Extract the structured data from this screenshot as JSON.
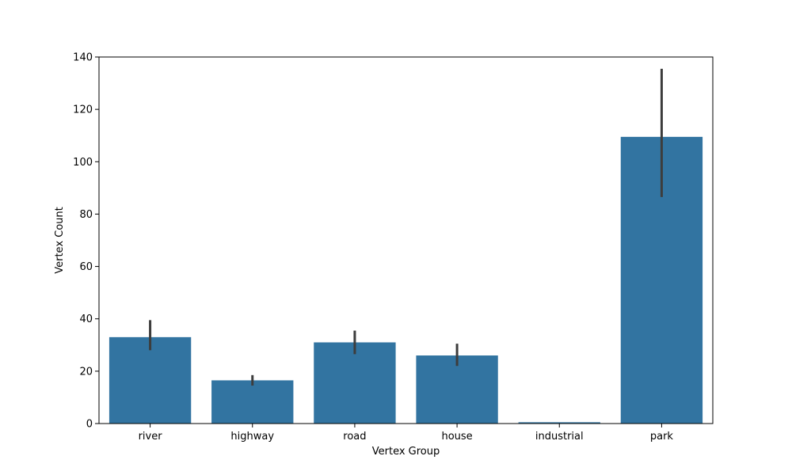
{
  "chart_data": {
    "type": "bar",
    "title": "",
    "xlabel": "Vertex Group",
    "ylabel": "Vertex Count",
    "categories": [
      "river",
      "highway",
      "road",
      "house",
      "industrial",
      "park"
    ],
    "values": [
      33,
      16.5,
      31,
      26,
      0.5,
      109.5
    ],
    "error_low": [
      28,
      14.5,
      26.5,
      22,
      0.5,
      86.5
    ],
    "error_high": [
      39.5,
      18.5,
      35.5,
      30.5,
      0.5,
      135.5
    ],
    "ylim": [
      0,
      140
    ],
    "yticks": [
      0,
      20,
      40,
      60,
      80,
      100,
      120,
      140
    ],
    "grid": false,
    "colors": {
      "bar": "#3274a1",
      "error_bar": "#3d3d3d",
      "axis": "#000000"
    }
  }
}
